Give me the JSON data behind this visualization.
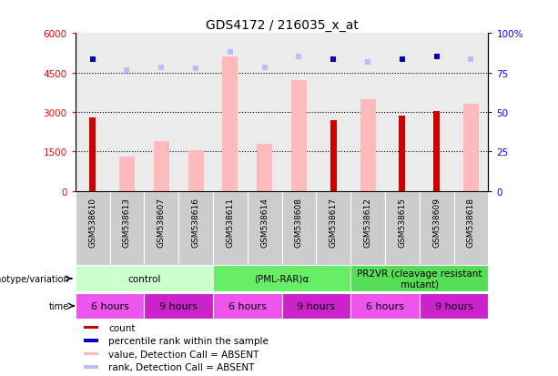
{
  "title": "GDS4172 / 216035_x_at",
  "samples": [
    "GSM538610",
    "GSM538613",
    "GSM538607",
    "GSM538616",
    "GSM538611",
    "GSM538614",
    "GSM538608",
    "GSM538617",
    "GSM538612",
    "GSM538615",
    "GSM538609",
    "GSM538618"
  ],
  "count_values": [
    2800,
    null,
    null,
    null,
    null,
    null,
    null,
    2700,
    null,
    2850,
    3050,
    null
  ],
  "absent_value_bars": [
    null,
    1300,
    1900,
    1550,
    5100,
    1800,
    4200,
    null,
    3500,
    null,
    null,
    3300
  ],
  "percentile_rank_dark": [
    5000,
    null,
    null,
    null,
    null,
    null,
    null,
    5000,
    null,
    5000,
    5100,
    null
  ],
  "absent_rank_markers": [
    null,
    4600,
    4700,
    4650,
    5300,
    4700,
    5100,
    null,
    4900,
    null,
    null,
    5000
  ],
  "ylim_left": [
    0,
    6000
  ],
  "ylim_right": [
    0,
    100
  ],
  "yticks_left": [
    0,
    1500,
    3000,
    4500,
    6000
  ],
  "yticks_right": [
    0,
    25,
    50,
    75,
    100
  ],
  "count_color": "#cc0000",
  "absent_value_color": "#ffbbbb",
  "percentile_dark_color": "#0000cc",
  "absent_rank_color": "#bbbbff",
  "genotype_groups": [
    {
      "label": "control",
      "start": 0,
      "end": 4,
      "color": "#ccffcc"
    },
    {
      "label": "(PML-RAR)α",
      "start": 4,
      "end": 8,
      "color": "#66ee66"
    },
    {
      "label": "PR2VR (cleavage resistant\nmutant)",
      "start": 8,
      "end": 12,
      "color": "#55dd55"
    }
  ],
  "time_colors": [
    "#ee55ee",
    "#cc22cc",
    "#ee55ee",
    "#cc22cc",
    "#ee55ee",
    "#cc22cc"
  ],
  "time_labels": [
    "6 hours",
    "9 hours",
    "6 hours",
    "9 hours",
    "6 hours",
    "9 hours"
  ],
  "time_starts": [
    0,
    2,
    4,
    6,
    8,
    10
  ],
  "time_ends": [
    2,
    4,
    6,
    8,
    10,
    12
  ],
  "legend_items": [
    {
      "label": "count",
      "color": "#cc0000"
    },
    {
      "label": "percentile rank within the sample",
      "color": "#0000cc"
    },
    {
      "label": "value, Detection Call = ABSENT",
      "color": "#ffbbbb"
    },
    {
      "label": "rank, Detection Call = ABSENT",
      "color": "#bbbbff"
    }
  ]
}
